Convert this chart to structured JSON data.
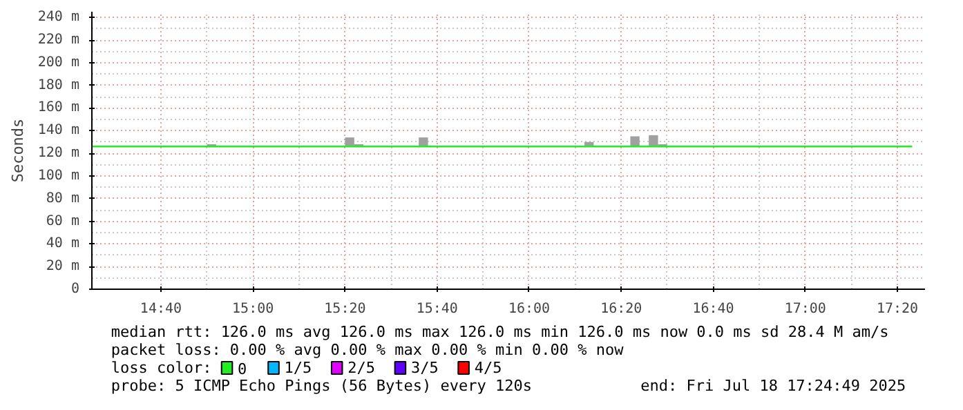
{
  "chart_data": {
    "type": "line",
    "ylabel": "Seconds",
    "xlim": [
      14.4167,
      17.4333
    ],
    "ylim": [
      0,
      245
    ],
    "xticks": [
      {
        "value": 14.6667,
        "label": "14:40"
      },
      {
        "value": 15,
        "label": "15:00"
      },
      {
        "value": 15.3333,
        "label": "15:20"
      },
      {
        "value": 15.6667,
        "label": "15:40"
      },
      {
        "value": 16,
        "label": "16:00"
      },
      {
        "value": 16.3333,
        "label": "16:20"
      },
      {
        "value": 16.6667,
        "label": "16:40"
      },
      {
        "value": 17,
        "label": "17:00"
      },
      {
        "value": 17.3333,
        "label": "17:20"
      }
    ],
    "yticks": [
      0,
      {
        "value": 20,
        "label": "20 m"
      },
      {
        "value": 40,
        "label": "40 m"
      },
      {
        "value": 60,
        "label": "60 m"
      },
      {
        "value": 80,
        "label": "80 m"
      },
      {
        "value": 100,
        "label": "100 m"
      },
      {
        "value": 120,
        "label": "120 m"
      },
      {
        "value": 140,
        "label": "140 m"
      },
      {
        "value": 160,
        "label": "160 m"
      },
      {
        "value": 180,
        "label": "180 m"
      },
      {
        "value": 200,
        "label": "200 m"
      },
      {
        "value": 220,
        "label": "220 m"
      },
      {
        "value": 240,
        "label": "240 m"
      }
    ],
    "grid": true,
    "legend": "bottom",
    "legend_title": "loss color:",
    "series": [
      {
        "type": "bar",
        "color": "#a0a0a0",
        "x": [
          14.85,
          15.35,
          15.383,
          15.617,
          16.217,
          16.383,
          16.45,
          16.483
        ],
        "base": [
          126,
          126,
          126,
          126,
          126,
          126,
          126,
          126
        ],
        "values": [
          2,
          8,
          2,
          8,
          4,
          9,
          10,
          2
        ]
      },
      {
        "name": "0",
        "color": "#20ee20",
        "x": [
          14.4167,
          17.387
        ],
        "values": [
          126,
          126
        ]
      },
      {
        "name": "1/5",
        "color": "#00b8ff"
      },
      {
        "name": "2/5",
        "color": "#e000ff"
      },
      {
        "name": "3/5",
        "color": "#6000ff"
      },
      {
        "name": "4/5",
        "color": "#ff0000"
      }
    ],
    "annotations": [
      "median rtt:  126.0 ms avg  126.0 ms max  126.0 ms min  126.0 ms now  0.0 ms sd  28.4 M am/s",
      "packet loss: 0.00 % avg  0.00 % max  0.00 % min  0.00 % now",
      "probe:       5 ICMP Echo Pings (56 Bytes) every 120s",
      "end: Fri Jul 18 17:24:49 2025"
    ]
  }
}
